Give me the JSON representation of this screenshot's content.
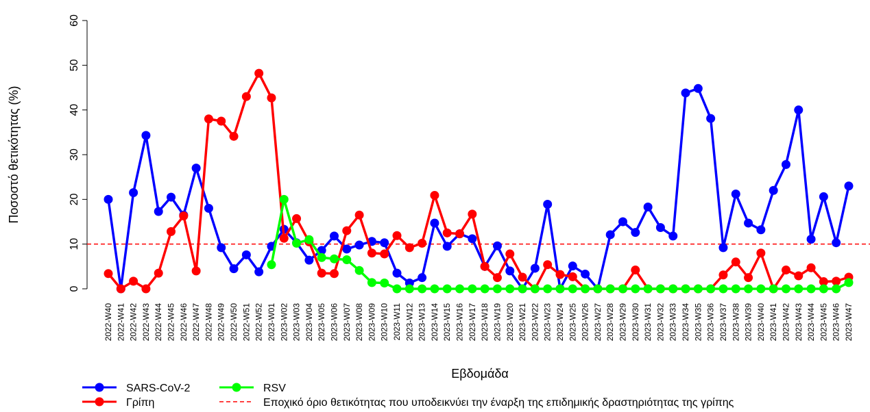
{
  "chart_data": {
    "type": "line",
    "x_label": "Εβδομάδα",
    "y_label": "Ποσοστό θετικότητας (%)",
    "categories": [
      "2022-W40",
      "2022-W41",
      "2022-W42",
      "2022-W43",
      "2022-W44",
      "2022-W45",
      "2022-W46",
      "2022-W47",
      "2022-W48",
      "2022-W49",
      "2022-W50",
      "2022-W51",
      "2022-W52",
      "2023-W01",
      "2023-W02",
      "2023-W03",
      "2023-W04",
      "2023-W05",
      "2023-W06",
      "2023-W07",
      "2023-W08",
      "2023-W09",
      "2023-W10",
      "2023-W11",
      "2023-W12",
      "2023-W13",
      "2023-W14",
      "2023-W15",
      "2023-W16",
      "2023-W17",
      "2023-W18",
      "2023-W19",
      "2023-W20",
      "2023-W21",
      "2023-W22",
      "2023-W23",
      "2023-W24",
      "2023-W25",
      "2023-W26",
      "2023-W27",
      "2023-W28",
      "2023-W29",
      "2023-W30",
      "2023-W31",
      "2023-W32",
      "2023-W33",
      "2023-W34",
      "2023-W35",
      "2023-W36",
      "2023-W37",
      "2023-W38",
      "2023-W39",
      "2023-W40",
      "2023-W41",
      "2023-W42",
      "2023-W43",
      "2023-W44",
      "2023-W45",
      "2023-W46",
      "2023-W47"
    ],
    "series": [
      {
        "name": "SARS-CoV-2",
        "color": "#0000ff",
        "values": [
          20,
          0,
          21.5,
          34.3,
          17.3,
          20.5,
          16.5,
          27,
          18,
          9.2,
          4.5,
          7.6,
          3.8,
          9.5,
          13.3,
          10.3,
          6.4,
          8.6,
          11.8,
          8.9,
          9.8,
          10.6,
          10.3,
          3.5,
          1.3,
          2.5,
          14.7,
          9.5,
          12.3,
          11.2,
          5,
          9.6,
          4,
          0,
          4.6,
          18.9,
          0,
          5.1,
          3.3,
          0,
          12.1,
          15,
          12.6,
          18.3,
          13.7,
          11.8,
          43.8,
          44.8,
          38.1,
          9.2,
          21.2,
          14.7,
          13.2,
          22,
          27.8,
          40,
          11.1,
          20.6,
          10.3,
          23
        ]
      },
      {
        "name": "Γρίπη",
        "color": "#ff0000",
        "values": [
          3.4,
          0,
          1.7,
          0,
          3.5,
          12.8,
          16.3,
          4,
          38,
          37.5,
          34.1,
          43,
          48.2,
          42.7,
          11.3,
          15.7,
          10.5,
          3.5,
          3.4,
          13,
          16.5,
          8,
          7.8,
          11.9,
          9.2,
          10.2,
          20.9,
          12.5,
          12.3,
          16.7,
          5,
          2.5,
          7.8,
          2.6,
          0,
          5.4,
          3.2,
          2.7,
          0,
          0,
          0,
          0,
          4.2,
          0,
          0,
          0,
          0,
          0,
          0,
          3.1,
          6,
          2.5,
          8,
          0,
          4.2,
          2.9,
          4.7,
          1.6,
          1.7,
          2.6
        ]
      },
      {
        "name": "RSV",
        "color": "#00ff00",
        "values": [
          null,
          null,
          null,
          null,
          null,
          null,
          null,
          null,
          null,
          null,
          null,
          null,
          null,
          5.4,
          20,
          10.2,
          11,
          7,
          6.7,
          6.5,
          4.1,
          1.4,
          1.3,
          0,
          0,
          0,
          0,
          0,
          0,
          0,
          0,
          0,
          0,
          0,
          0,
          0,
          0,
          0,
          0,
          0,
          0,
          0,
          0,
          0,
          0,
          0,
          0,
          0,
          0,
          0,
          0,
          0,
          0,
          0,
          0,
          0,
          0,
          0,
          0,
          1.4
        ]
      }
    ],
    "threshold": {
      "value": 10,
      "label": "Εποχικό όριο θετικότητας που υποδεικνύει την έναρξη της επιδημικής δραστηριότητας της γρίπης",
      "color": "#ff0000"
    },
    "ylim": [
      0,
      60
    ],
    "yticks": [
      0,
      10,
      20,
      30,
      40,
      50,
      60
    ],
    "grid": false
  }
}
